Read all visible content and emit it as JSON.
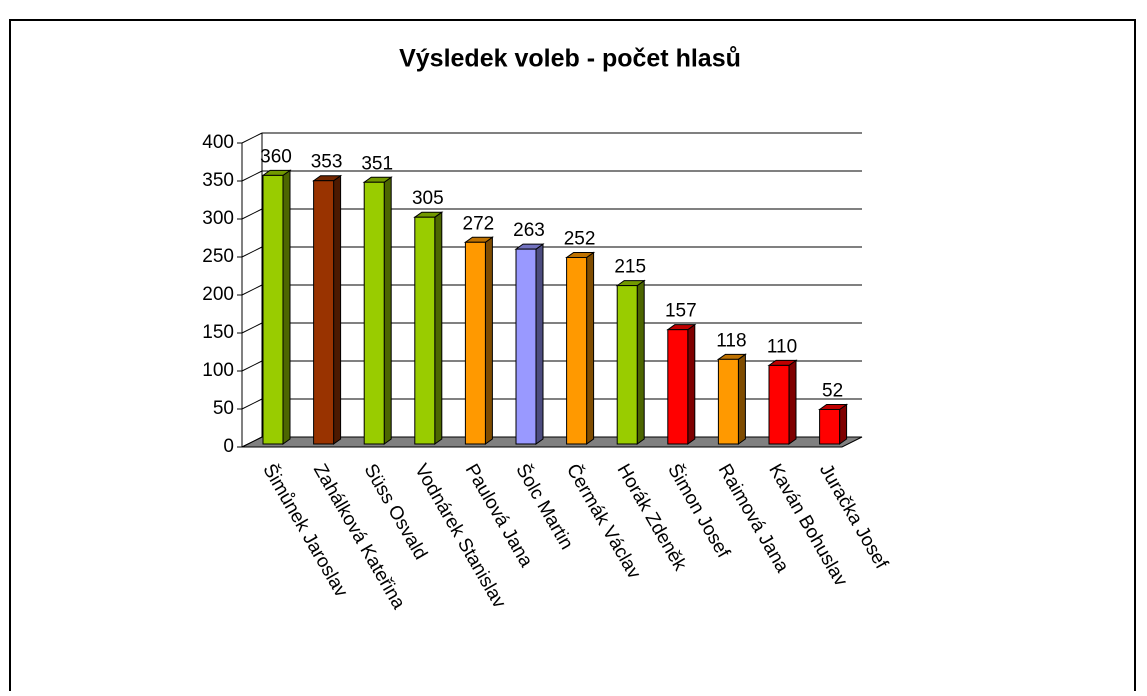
{
  "chart_data": {
    "type": "bar",
    "title": "Výsledek voleb - počet hlasů",
    "categories": [
      "Šimůnek Jaroslav",
      "Zahálková Kateřina",
      "Süss Osvald",
      "Vodnárek Stanislav",
      "Paulová Jana",
      "Šolc Martin",
      "Čermák Václav",
      "Horák Zdeněk",
      "Šimon Josef",
      "Raimová Jana",
      "Kaván Bohuslav",
      "Juračka Josef"
    ],
    "values": [
      360,
      353,
      351,
      305,
      272,
      263,
      252,
      215,
      157,
      118,
      110,
      52
    ],
    "colors": [
      "#99cc00",
      "#993300",
      "#99cc00",
      "#99cc00",
      "#ff9900",
      "#9999ff",
      "#ff9900",
      "#99cc00",
      "#ff0000",
      "#ff9900",
      "#ff0000",
      "#ff0000"
    ],
    "ylim": [
      0,
      400
    ],
    "yticks": [
      0,
      50,
      100,
      150,
      200,
      250,
      300,
      350,
      400
    ],
    "grid": true
  }
}
